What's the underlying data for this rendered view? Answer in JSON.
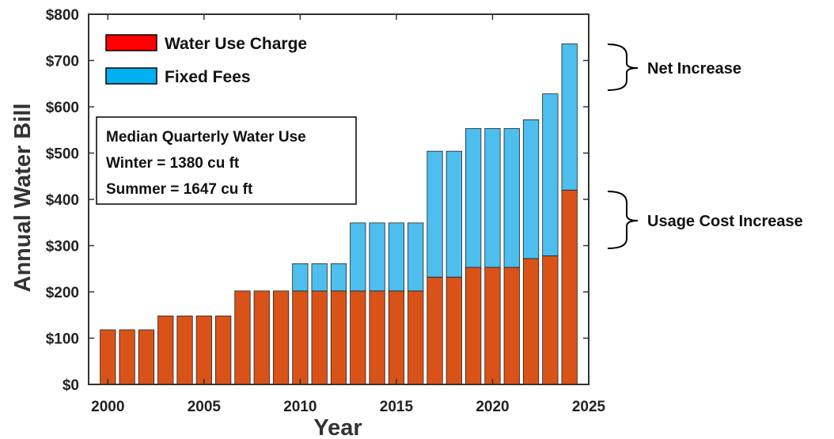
{
  "chart_data": {
    "type": "bar",
    "stacked": true,
    "title": "",
    "xlabel": "Year",
    "ylabel": "Annual Water Bill",
    "xlim": [
      1999,
      2025
    ],
    "ylim": [
      0,
      800
    ],
    "x_ticks": [
      2000,
      2005,
      2010,
      2015,
      2020,
      2025
    ],
    "y_ticks": [
      0,
      100,
      200,
      300,
      400,
      500,
      600,
      700,
      800
    ],
    "y_tick_labels": [
      "$0",
      "$100",
      "$200",
      "$300",
      "$400",
      "$500",
      "$600",
      "$700",
      "$800"
    ],
    "x": [
      2000,
      2001,
      2002,
      2003,
      2004,
      2005,
      2006,
      2007,
      2008,
      2009,
      2010,
      2011,
      2012,
      2013,
      2014,
      2015,
      2016,
      2017,
      2018,
      2019,
      2020,
      2021,
      2022,
      2023,
      2024
    ],
    "series": [
      {
        "name": "Water Use Charge",
        "values": [
          118,
          118,
          118,
          148,
          148,
          148,
          148,
          202,
          202,
          202,
          202,
          202,
          202,
          202,
          202,
          202,
          202,
          232,
          232,
          253,
          253,
          253,
          272,
          278,
          420
        ]
      },
      {
        "name": "Fixed Fees",
        "values": [
          0,
          0,
          0,
          0,
          0,
          0,
          0,
          0,
          0,
          0,
          59,
          59,
          59,
          147,
          147,
          147,
          147,
          272,
          272,
          300,
          300,
          300,
          300,
          350,
          316
        ]
      }
    ],
    "colors": {
      "bar_usage": "#D95319",
      "bar_fixed": "#4DBEEE",
      "legend_usage": "#FF0000",
      "legend_fixed": "#00B0F0"
    },
    "grid": false,
    "legend_position": "top-left",
    "annotations": {
      "info_box": [
        "Median Quarterly Water Use",
        "Winter = 1380 cu ft",
        "Summer = 1647 cu ft"
      ],
      "net_increase": "Net Increase",
      "usage_increase": "Usage Cost Increase"
    }
  }
}
